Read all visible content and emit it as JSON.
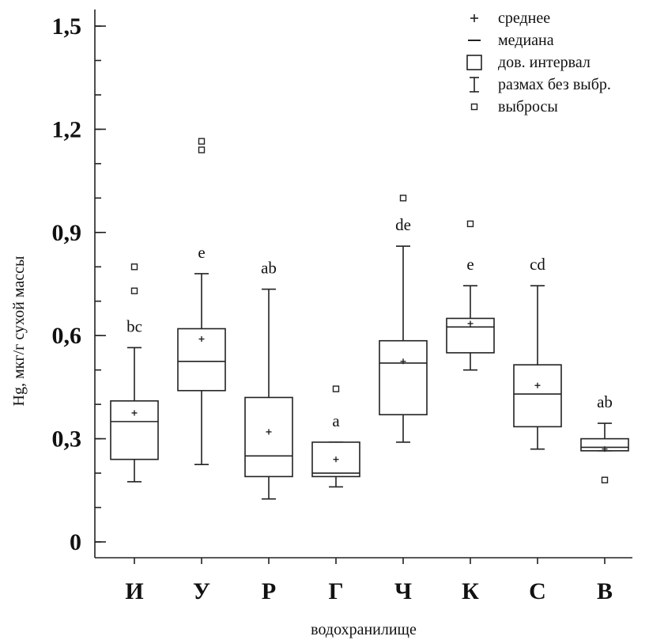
{
  "chart_data": {
    "type": "boxplot",
    "ylabel": "Hg, мкг/г сухой массы",
    "xlabel": "водохранилище",
    "ylim": [
      0,
      1.5
    ],
    "yticks": [
      {
        "value": 0,
        "label": "0"
      },
      {
        "value": 0.3,
        "label": "0,3"
      },
      {
        "value": 0.6,
        "label": "0,6"
      },
      {
        "value": 0.9,
        "label": "0,9"
      },
      {
        "value": 1.2,
        "label": "1,2"
      },
      {
        "value": 1.5,
        "label": "1,5"
      }
    ],
    "minor_tick_step": 0.1,
    "categories": [
      "И",
      "У",
      "Р",
      "Г",
      "Ч",
      "К",
      "С",
      "В"
    ],
    "boxes": [
      {
        "category": "И",
        "whisker_low": 0.175,
        "q1": 0.24,
        "median": 0.35,
        "q3": 0.41,
        "whisker_high": 0.565,
        "mean": 0.375,
        "outliers": [
          0.73,
          0.8
        ],
        "group": "bc"
      },
      {
        "category": "У",
        "whisker_low": 0.225,
        "q1": 0.44,
        "median": 0.525,
        "q3": 0.62,
        "whisker_high": 0.78,
        "mean": 0.59,
        "outliers": [
          1.14,
          1.165
        ],
        "group": "e"
      },
      {
        "category": "Р",
        "whisker_low": 0.125,
        "q1": 0.19,
        "median": 0.25,
        "q3": 0.42,
        "whisker_high": 0.735,
        "mean": 0.32,
        "outliers": [],
        "group": "ab"
      },
      {
        "category": "Г",
        "whisker_low": 0.16,
        "q1": 0.19,
        "median": 0.2,
        "q3": 0.29,
        "whisker_high": 0.29,
        "mean": 0.24,
        "outliers": [
          0.445
        ],
        "group": "a"
      },
      {
        "category": "Ч",
        "whisker_low": 0.29,
        "q1": 0.37,
        "median": 0.52,
        "q3": 0.585,
        "whisker_high": 0.86,
        "mean": 0.525,
        "outliers": [
          1.0
        ],
        "group": "de"
      },
      {
        "category": "К",
        "whisker_low": 0.5,
        "q1": 0.55,
        "median": 0.625,
        "q3": 0.65,
        "whisker_high": 0.745,
        "mean": 0.635,
        "outliers": [
          0.925
        ],
        "group": "e"
      },
      {
        "category": "С",
        "whisker_low": 0.27,
        "q1": 0.335,
        "median": 0.43,
        "q3": 0.515,
        "whisker_high": 0.745,
        "mean": 0.455,
        "outliers": [],
        "group": "cd"
      },
      {
        "category": "В",
        "whisker_low": 0.265,
        "q1": 0.265,
        "median": 0.275,
        "q3": 0.3,
        "whisker_high": 0.345,
        "mean": 0.27,
        "outliers": [
          0.18
        ],
        "group": "ab"
      }
    ],
    "legend": {
      "position": "top-right",
      "items": [
        {
          "symbol": "plus",
          "label": "среднее"
        },
        {
          "symbol": "dash",
          "label": "медиана"
        },
        {
          "symbol": "box",
          "label": "дов. интервал"
        },
        {
          "symbol": "whisker",
          "label": "размах без выбр."
        },
        {
          "symbol": "small-square",
          "label": "выбросы"
        }
      ]
    }
  }
}
